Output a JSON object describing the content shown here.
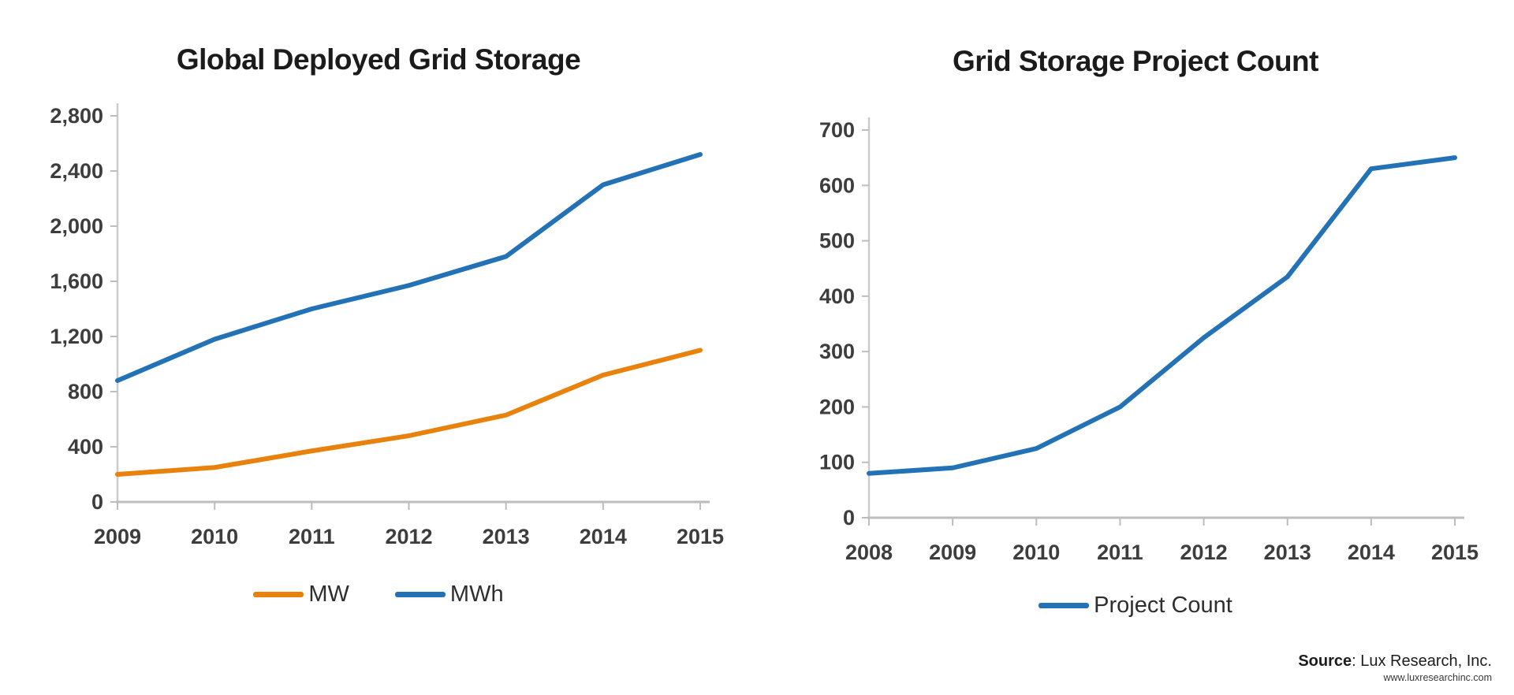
{
  "page": {
    "background": "#ffffff",
    "axis_color": "#bdbdbd",
    "tick_label_color": "#3d3d3d"
  },
  "chart_data": [
    {
      "type": "line",
      "title": "Global Deployed Grid Storage",
      "x": [
        "2009",
        "2010",
        "2011",
        "2012",
        "2013",
        "2014",
        "2015"
      ],
      "series": [
        {
          "name": "MW",
          "color": "#E8820D",
          "values": [
            200,
            250,
            370,
            480,
            630,
            920,
            1100
          ]
        },
        {
          "name": "MWh",
          "color": "#2272B5",
          "values": [
            880,
            1180,
            1400,
            1570,
            1780,
            2300,
            2520
          ]
        }
      ],
      "xlabel": "",
      "ylabel": "",
      "ylim": [
        0,
        2800
      ],
      "ytick_values": [
        0,
        400,
        800,
        1200,
        1600,
        2000,
        2400,
        2800
      ],
      "ytick_labels": [
        "0",
        "400",
        "800",
        "1,200",
        "1,600",
        "2,000",
        "2,400",
        "2,800"
      ],
      "grid": false,
      "legend_position": "bottom"
    },
    {
      "type": "line",
      "title": "Grid Storage Project Count",
      "x": [
        "2008",
        "2009",
        "2010",
        "2011",
        "2012",
        "2013",
        "2014",
        "2015"
      ],
      "series": [
        {
          "name": "Project Count",
          "color": "#2272B5",
          "values": [
            80,
            90,
            125,
            200,
            325,
            435,
            630,
            650
          ]
        }
      ],
      "xlabel": "",
      "ylabel": "",
      "ylim": [
        0,
        700
      ],
      "ytick_values": [
        0,
        100,
        200,
        300,
        400,
        500,
        600,
        700
      ],
      "ytick_labels": [
        "0",
        "100",
        "200",
        "300",
        "400",
        "500",
        "600",
        "700"
      ],
      "grid": false,
      "legend_position": "bottom"
    }
  ],
  "source_note": {
    "source_label": "Source",
    "source_text": ": Lux Research, Inc.",
    "website": "www.luxresearchinc.com"
  }
}
